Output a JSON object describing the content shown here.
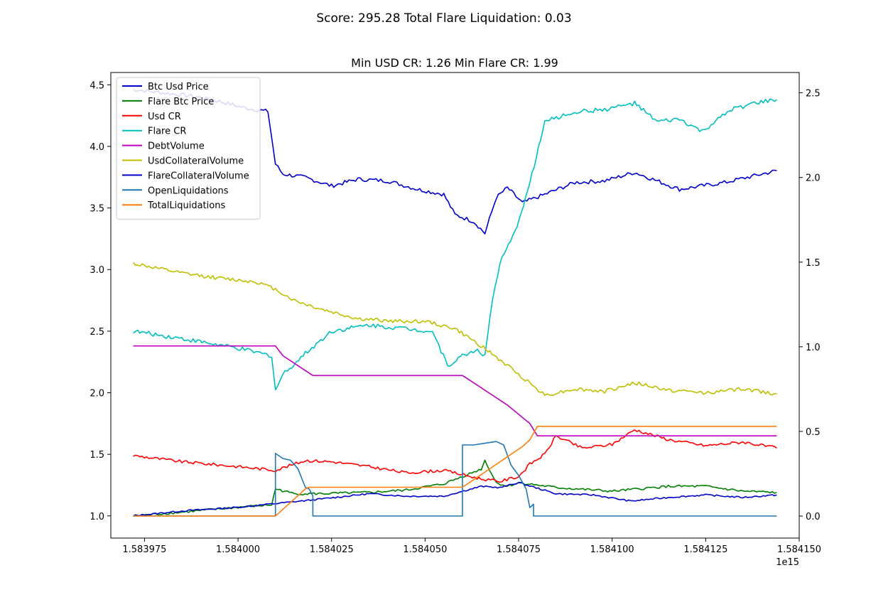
{
  "suptitle": "Score: 295.28 Total Flare Liquidation: 0.03",
  "chart_data": {
    "type": "line",
    "title": "Min USD CR: 1.26 Min Flare CR: 1.99",
    "xlabel": "",
    "ylabel": "",
    "x_offset_label": "1e15",
    "xlim": [
      1.583966,
      1.58415
    ],
    "ylim_left": [
      0.82,
      4.6
    ],
    "ylim_right": [
      -0.13,
      2.62
    ],
    "x_ticks": [
      1.583975,
      1.584,
      1.584025,
      1.58405,
      1.584075,
      1.5841,
      1.584125,
      1.58415
    ],
    "x_tick_labels": [
      "1.583975",
      "1.584000",
      "1.584025",
      "1.584050",
      "1.584075",
      "1.584100",
      "1.584125",
      "1.584150"
    ],
    "y_left_ticks": [
      1.0,
      1.5,
      2.0,
      2.5,
      3.0,
      3.5,
      4.0,
      4.5
    ],
    "y_left_tick_labels": [
      "1.0",
      "1.5",
      "2.0",
      "2.5",
      "3.0",
      "3.5",
      "4.0",
      "4.5"
    ],
    "y_right_ticks": [
      0.0,
      0.5,
      1.0,
      1.5,
      2.0,
      2.5
    ],
    "y_right_tick_labels": [
      "0.0",
      "0.5",
      "1.0",
      "1.5",
      "2.0",
      "2.5"
    ],
    "legend_location": "upper left",
    "grid": false,
    "series": [
      {
        "name": "Btc Usd Price",
        "color": "#0000cc",
        "axis": "right",
        "noise": 0.012,
        "x": [
          1.583972,
          1.58398,
          1.583988,
          1.583995,
          1.584002,
          1.584008,
          1.58401,
          1.584012,
          1.584018,
          1.584025,
          1.584032,
          1.58404,
          1.584048,
          1.584055,
          1.584058,
          1.584063,
          1.584066,
          1.584069,
          1.584072,
          1.584076,
          1.584082,
          1.58409,
          1.584098,
          1.584106,
          1.584112,
          1.584118,
          1.584124,
          1.58413,
          1.584138,
          1.584144
        ],
        "y": [
          2.52,
          2.5,
          2.48,
          2.45,
          2.41,
          2.39,
          2.08,
          2.02,
          2.0,
          1.95,
          1.99,
          1.98,
          1.93,
          1.9,
          1.78,
          1.74,
          1.67,
          1.88,
          1.94,
          1.85,
          1.9,
          1.97,
          1.98,
          2.03,
          1.98,
          1.93,
          1.95,
          1.97,
          2.01,
          2.04
        ]
      },
      {
        "name": "Flare Btc Price",
        "color": "#008000",
        "axis": "left",
        "noise": 0.01,
        "x": [
          1.583972,
          1.583985,
          1.584,
          1.584009,
          1.58401,
          1.584015,
          1.584022,
          1.584035,
          1.584045,
          1.584055,
          1.58406,
          1.584065,
          1.584066,
          1.584069,
          1.584072,
          1.584075,
          1.584085,
          1.5841,
          1.584115,
          1.584125,
          1.584135,
          1.584144
        ],
        "y": [
          1.0,
          1.03,
          1.07,
          1.09,
          1.22,
          1.18,
          1.18,
          1.19,
          1.21,
          1.26,
          1.32,
          1.38,
          1.45,
          1.27,
          1.24,
          1.27,
          1.23,
          1.2,
          1.24,
          1.24,
          1.2,
          1.19
        ]
      },
      {
        "name": "Usd CR",
        "color": "#ff0000",
        "axis": "left",
        "noise": 0.012,
        "x": [
          1.583972,
          1.583985,
          1.584,
          1.58401,
          1.584018,
          1.584025,
          1.584035,
          1.584045,
          1.584055,
          1.584065,
          1.58407,
          1.584075,
          1.584078,
          1.584082,
          1.584085,
          1.584092,
          1.5841,
          1.584106,
          1.584115,
          1.584125,
          1.584135,
          1.584144
        ],
        "y": [
          1.49,
          1.44,
          1.4,
          1.37,
          1.45,
          1.44,
          1.4,
          1.35,
          1.37,
          1.3,
          1.28,
          1.32,
          1.42,
          1.5,
          1.65,
          1.55,
          1.58,
          1.7,
          1.62,
          1.57,
          1.6,
          1.55
        ]
      },
      {
        "name": "Flare CR",
        "color": "#00bfbf",
        "axis": "left",
        "noise": 0.018,
        "x": [
          1.583972,
          1.583985,
          1.584,
          1.584009,
          1.58401,
          1.584012,
          1.584018,
          1.584025,
          1.584035,
          1.584045,
          1.584052,
          1.584056,
          1.58406,
          1.584064,
          1.584066,
          1.584068,
          1.58407,
          1.584074,
          1.584078,
          1.584082,
          1.58409,
          1.584098,
          1.584106,
          1.584112,
          1.584118,
          1.584124,
          1.584132,
          1.584138,
          1.584144
        ],
        "y": [
          2.5,
          2.44,
          2.36,
          2.3,
          2.02,
          2.15,
          2.32,
          2.5,
          2.55,
          2.52,
          2.5,
          2.22,
          2.3,
          2.35,
          2.3,
          2.75,
          3.05,
          3.3,
          3.7,
          4.2,
          4.28,
          4.3,
          4.35,
          4.2,
          4.22,
          4.12,
          4.3,
          4.35,
          4.38
        ]
      },
      {
        "name": "DebtVolume",
        "color": "#bf00bf",
        "axis": "left",
        "noise": 0.0,
        "x": [
          1.583972,
          1.58401,
          1.584011,
          1.584012,
          1.584014,
          1.584016,
          1.584018,
          1.58402,
          1.58406,
          1.584062,
          1.584064,
          1.584066,
          1.584068,
          1.58407,
          1.584072,
          1.584074,
          1.584076,
          1.584078,
          1.58408,
          1.584144
        ],
        "y": [
          2.38,
          2.38,
          2.34,
          2.3,
          2.26,
          2.22,
          2.18,
          2.14,
          2.14,
          2.1,
          2.06,
          2.02,
          1.98,
          1.94,
          1.9,
          1.85,
          1.8,
          1.75,
          1.65,
          1.65
        ]
      },
      {
        "name": "UsdCollateralVolume",
        "color": "#bfbf00",
        "axis": "left",
        "noise": 0.015,
        "x": [
          1.583972,
          1.583985,
          1.583995,
          1.584005,
          1.58401,
          1.584015,
          1.584022,
          1.584032,
          1.584042,
          1.58405,
          1.584058,
          1.584065,
          1.584072,
          1.584078,
          1.584082,
          1.58409,
          1.584098,
          1.584106,
          1.584115,
          1.584125,
          1.584135,
          1.584144
        ],
        "y": [
          3.05,
          2.97,
          2.93,
          2.9,
          2.84,
          2.75,
          2.68,
          2.6,
          2.58,
          2.58,
          2.52,
          2.38,
          2.22,
          2.08,
          1.98,
          2.03,
          2.01,
          2.08,
          2.02,
          2.0,
          2.03,
          1.99
        ]
      },
      {
        "name": "FlareCollateralVolume",
        "color": "#0000cc",
        "axis": "left",
        "noise": 0.006,
        "x": [
          1.583972,
          1.583985,
          1.584,
          1.58401,
          1.58402,
          1.584035,
          1.584045,
          1.584055,
          1.584065,
          1.58407,
          1.584075,
          1.584085,
          1.584095,
          1.584105,
          1.584115,
          1.584125,
          1.584135,
          1.584144
        ],
        "y": [
          1.0,
          1.04,
          1.07,
          1.1,
          1.13,
          1.18,
          1.16,
          1.16,
          1.24,
          1.23,
          1.27,
          1.18,
          1.17,
          1.12,
          1.15,
          1.17,
          1.15,
          1.17
        ]
      },
      {
        "name": "OpenLiquidations",
        "color": "#1f77b4",
        "axis": "right",
        "noise": 0.0,
        "x": [
          1.583972,
          1.58401,
          1.58401,
          1.584012,
          1.584014,
          1.584016,
          1.584018,
          1.584019,
          1.58402,
          1.58402,
          1.58406,
          1.58406,
          1.584063,
          1.584066,
          1.584069,
          1.584071,
          1.584073,
          1.584075,
          1.584077,
          1.584078,
          1.584079,
          1.584079,
          1.584144
        ],
        "y": [
          0.0,
          0.0,
          0.37,
          0.34,
          0.33,
          0.28,
          0.17,
          0.16,
          0.12,
          0.0,
          0.0,
          0.42,
          0.42,
          0.43,
          0.44,
          0.42,
          0.3,
          0.24,
          0.16,
          0.05,
          0.07,
          0.0,
          0.0
        ]
      },
      {
        "name": "TotalLiquidations",
        "color": "#ff7f0e",
        "axis": "right",
        "noise": 0.0,
        "x": [
          1.583972,
          1.58401,
          1.584011,
          1.584012,
          1.584013,
          1.584014,
          1.584015,
          1.584016,
          1.584017,
          1.584018,
          1.584019,
          1.58406,
          1.584062,
          1.584064,
          1.584066,
          1.584068,
          1.58407,
          1.584072,
          1.584074,
          1.584076,
          1.584078,
          1.58408,
          1.584144
        ],
        "y": [
          0.0,
          0.0,
          0.02,
          0.04,
          0.06,
          0.08,
          0.1,
          0.12,
          0.14,
          0.16,
          0.17,
          0.17,
          0.2,
          0.23,
          0.26,
          0.29,
          0.32,
          0.35,
          0.38,
          0.41,
          0.45,
          0.53,
          0.53
        ]
      }
    ]
  }
}
